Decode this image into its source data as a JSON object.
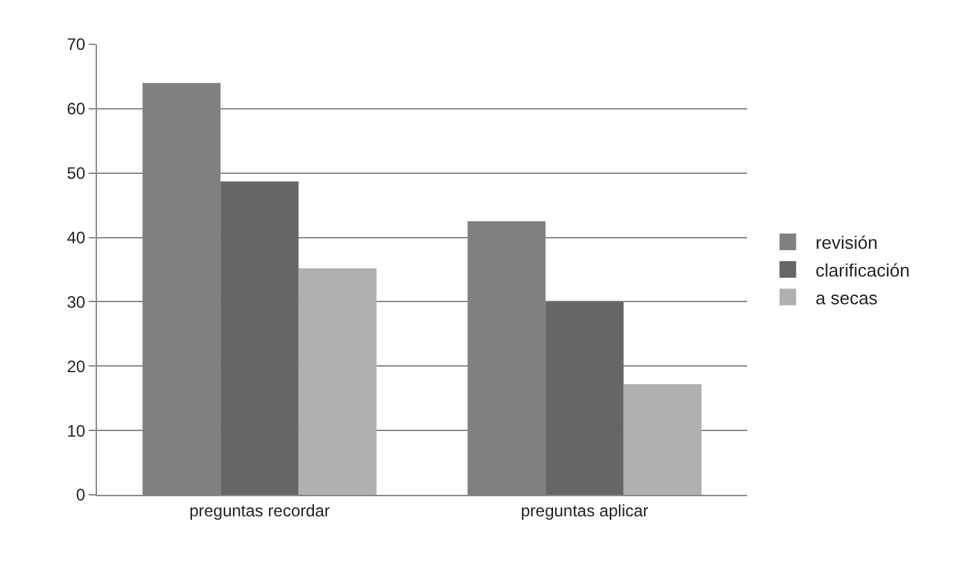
{
  "chart_data": {
    "type": "bar",
    "categories": [
      "preguntas recordar",
      "preguntas aplicar"
    ],
    "series": [
      {
        "name": "revisión",
        "color": "#808080",
        "values": [
          64,
          42.5
        ]
      },
      {
        "name": "clarificación",
        "color": "#666666",
        "values": [
          48.7,
          30
        ]
      },
      {
        "name": "a secas",
        "color": "#b0b0b0",
        "values": [
          35.2,
          17.2
        ]
      }
    ],
    "ylim": [
      0,
      70
    ],
    "yticks": [
      0,
      10,
      20,
      30,
      40,
      50,
      60,
      70
    ],
    "grid": "y",
    "legend": "right"
  }
}
